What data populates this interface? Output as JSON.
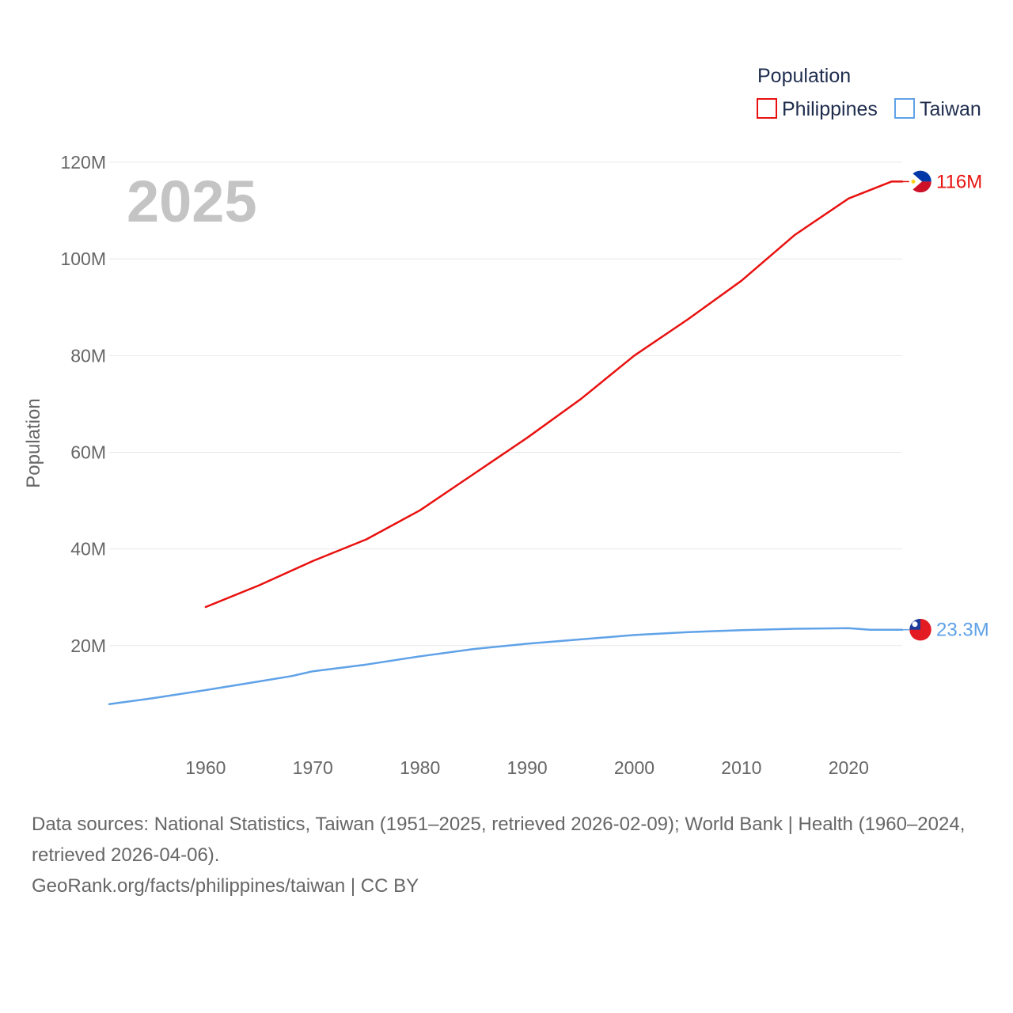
{
  "chart_data": {
    "type": "line",
    "year_label": "2025",
    "ylabel": "Population",
    "ylim": [
      0,
      120000000
    ],
    "xlim": [
      1951,
      2025
    ],
    "y_ticks": [
      {
        "value": 20000000,
        "label": "20M"
      },
      {
        "value": 40000000,
        "label": "40M"
      },
      {
        "value": 60000000,
        "label": "60M"
      },
      {
        "value": 80000000,
        "label": "80M"
      },
      {
        "value": 100000000,
        "label": "100M"
      },
      {
        "value": 120000000,
        "label": "120M"
      }
    ],
    "x_ticks": [
      {
        "value": 1960,
        "label": "1960"
      },
      {
        "value": 1970,
        "label": "1970"
      },
      {
        "value": 1980,
        "label": "1980"
      },
      {
        "value": 1990,
        "label": "1990"
      },
      {
        "value": 2000,
        "label": "2000"
      },
      {
        "value": 2010,
        "label": "2010"
      },
      {
        "value": 2020,
        "label": "2020"
      }
    ],
    "legend_title": "Population",
    "series": [
      {
        "name": "Philippines",
        "color": "#e8110f",
        "end_label": "116M",
        "flag": "philippines-flag",
        "x": [
          1960,
          1965,
          1970,
          1975,
          1980,
          1985,
          1990,
          1995,
          2000,
          2005,
          2010,
          2015,
          2020,
          2024,
          2025
        ],
        "values": [
          28000000,
          32500000,
          37500000,
          42000000,
          48000000,
          55500000,
          63000000,
          71000000,
          80000000,
          87500000,
          95500000,
          105000000,
          112500000,
          116000000,
          116000000
        ]
      },
      {
        "name": "Taiwan",
        "color": "#5fa2e8",
        "end_label": "23.3M",
        "flag": "taiwan-flag",
        "x": [
          1951,
          1955,
          1960,
          1965,
          1968,
          1970,
          1975,
          1980,
          1985,
          1990,
          1995,
          2000,
          2005,
          2010,
          2015,
          2020,
          2022,
          2025
        ],
        "values": [
          7900000,
          9100000,
          10800000,
          12600000,
          13700000,
          14700000,
          16100000,
          17800000,
          19300000,
          20400000,
          21300000,
          22200000,
          22800000,
          23200000,
          23500000,
          23600000,
          23300000,
          23300000
        ]
      }
    ]
  },
  "footer": {
    "sources": "Data sources: National Statistics, Taiwan (1951–2025, retrieved 2026-02-09); World Bank | Health (1960–2024, retrieved 2026-04-06).",
    "credit": "GeoRank.org/facts/philippines/taiwan | CC BY"
  }
}
